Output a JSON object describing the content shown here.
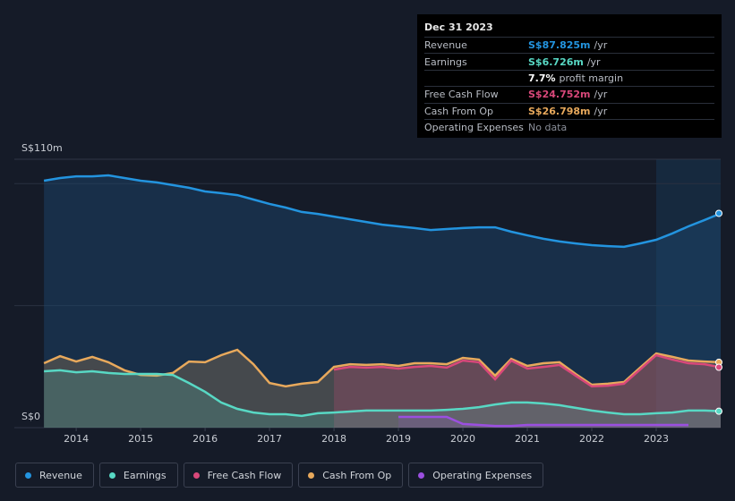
{
  "chart_data": {
    "type": "area",
    "x": [
      2013.5,
      2013.75,
      2014,
      2014.25,
      2014.5,
      2014.75,
      2015,
      2015.25,
      2015.5,
      2015.75,
      2016,
      2016.25,
      2016.5,
      2016.75,
      2017,
      2017.25,
      2017.5,
      2017.75,
      2018,
      2018.25,
      2018.5,
      2018.75,
      2019,
      2019.25,
      2019.5,
      2019.75,
      2020,
      2020.25,
      2020.5,
      2020.75,
      2021,
      2021.25,
      2021.5,
      2021.75,
      2022,
      2022.25,
      2022.5,
      2022.75,
      2023,
      2023.25,
      2023.5,
      2023.75,
      2024
    ],
    "series": [
      {
        "name": "Revenue",
        "color": "#2394df",
        "values": [
          101.2,
          102.3,
          103,
          103,
          103.4,
          102.3,
          101.2,
          100.5,
          99.4,
          98.3,
          96.8,
          96.1,
          95.3,
          93.5,
          91.7,
          90.2,
          88.4,
          87.6,
          86.5,
          85.4,
          84.3,
          83.2,
          82.5,
          81.8,
          81,
          81.4,
          81.8,
          82.1,
          82.1,
          80.3,
          78.8,
          77.4,
          76.3,
          75.5,
          74.8,
          74.4,
          74.1,
          75.5,
          77,
          79.6,
          82.5,
          85.1,
          87.825
        ]
      },
      {
        "name": "Earnings",
        "color": "#58d8c4",
        "values": [
          23.1,
          23.5,
          22.7,
          23.1,
          22.4,
          22,
          22,
          22,
          21.6,
          18.3,
          14.7,
          10.3,
          7.7,
          6.2,
          5.5,
          5.5,
          4.8,
          5.9,
          6.2,
          6.6,
          7,
          7,
          7,
          7,
          7,
          7.3,
          7.7,
          8.4,
          9.5,
          10.3,
          10.3,
          9.9,
          9.2,
          8.1,
          7,
          6.2,
          5.5,
          5.5,
          5.9,
          6.2,
          7,
          7,
          6.726
        ]
      },
      {
        "name": "Free Cash Flow",
        "color": "#d9487a",
        "values": [
          null,
          null,
          null,
          null,
          null,
          null,
          null,
          null,
          null,
          null,
          null,
          null,
          null,
          null,
          null,
          null,
          null,
          null,
          23.8,
          24.9,
          24.6,
          24.9,
          24.2,
          24.9,
          25.3,
          24.6,
          27.5,
          26.8,
          19.8,
          27.5,
          24.2,
          24.9,
          25.7,
          21.3,
          16.9,
          17.2,
          18,
          23.8,
          29.7,
          27.9,
          26.4,
          26,
          24.752
        ]
      },
      {
        "name": "Cash From Op",
        "color": "#e8a95c",
        "values": [
          26.4,
          29.3,
          27.1,
          29,
          26.8,
          23.5,
          21.6,
          21.3,
          22.4,
          27.1,
          26.8,
          29.7,
          31.9,
          26,
          18.3,
          16.9,
          18,
          18.7,
          24.9,
          26,
          25.7,
          26,
          25.3,
          26.4,
          26.4,
          26,
          28.6,
          27.9,
          21.3,
          28.2,
          25.3,
          26.4,
          26.8,
          22,
          17.6,
          18,
          18.7,
          24.6,
          30.4,
          29,
          27.5,
          27.1,
          26.798
        ]
      },
      {
        "name": "Operating Expenses",
        "color": "#9b4fe0",
        "values": [
          null,
          null,
          null,
          null,
          null,
          null,
          null,
          null,
          null,
          null,
          null,
          null,
          null,
          null,
          null,
          null,
          null,
          null,
          null,
          null,
          null,
          null,
          4.4,
          4.4,
          4.4,
          4.4,
          1.5,
          1.1,
          0.7,
          0.7,
          1.1,
          1.1,
          1.1,
          1.1,
          1.1,
          1.1,
          1.1,
          1.1,
          1.1,
          1.1,
          1.1,
          null,
          null
        ]
      }
    ],
    "xlim": [
      2013.04,
      2024.0
    ],
    "xticks": [
      2014,
      2015,
      2016,
      2017,
      2018,
      2019,
      2020,
      2021,
      2022,
      2023
    ],
    "ylim": [
      0,
      110
    ],
    "yticks": [
      {
        "value": 0,
        "label": "S$0"
      },
      {
        "value": 110,
        "label": "S$110m"
      }
    ],
    "grid_lines": [
      50,
      100
    ],
    "highlight_x": [
      2023,
      2024
    ],
    "tooltip": {
      "date": "Dec 31 2023",
      "rows": [
        {
          "label": "Revenue",
          "value": "S$87.825m",
          "unit": "/yr",
          "color": "#2394df"
        },
        {
          "label": "Earnings",
          "value": "S$6.726m",
          "unit": "/yr",
          "color": "#58d8c4"
        },
        {
          "label": "Free Cash Flow",
          "value": "S$24.752m",
          "unit": "/yr",
          "color": "#d9487a"
        },
        {
          "label": "Cash From Op",
          "value": "S$26.798m",
          "unit": "/yr",
          "color": "#e8a95c"
        },
        {
          "label": "Operating Expenses",
          "value": "No data",
          "color": "#8a8f99"
        }
      ],
      "margin": {
        "value": "7.7%",
        "text": "profit margin"
      }
    }
  }
}
